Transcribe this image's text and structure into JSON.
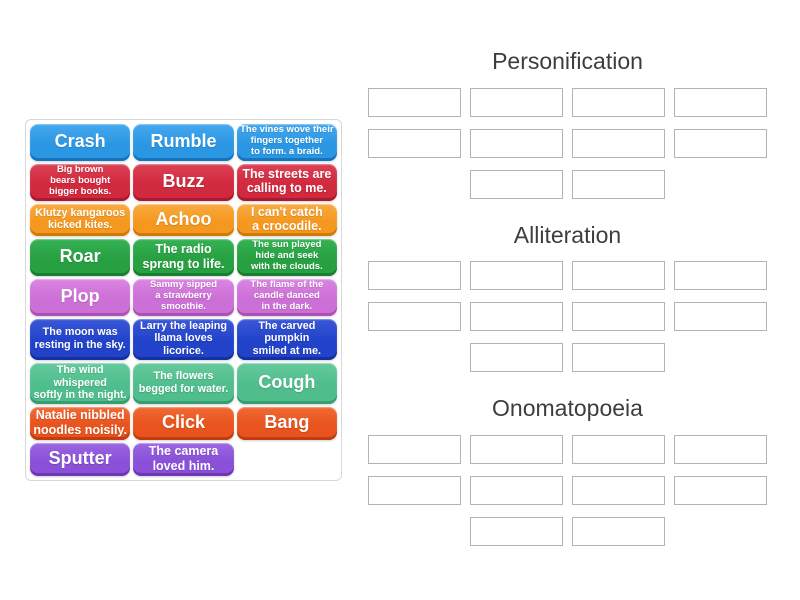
{
  "page": {
    "background": "#ffffff",
    "header_text_color": "#3d3d3d"
  },
  "palette": {
    "blue": {
      "base": "#2b97e3",
      "light": "#45a8ee",
      "dark": "#1576bf"
    },
    "crimson": {
      "base": "#d1293e",
      "light": "#dc4156",
      "dark": "#a81a2c"
    },
    "orange": {
      "base": "#f5981f",
      "light": "#f8ab41",
      "dark": "#d07a08"
    },
    "green": {
      "base": "#27a042",
      "light": "#35b253",
      "dark": "#177f30"
    },
    "orchid": {
      "base": "#cc6fd6",
      "light": "#d985e2",
      "dark": "#ad50b8"
    },
    "royalblue": {
      "base": "#2142c9",
      "light": "#3a58d8",
      "dark": "#1531a0"
    },
    "seagreen": {
      "base": "#4fbd8c",
      "light": "#65ca9d",
      "dark": "#379e71"
    },
    "orangered": {
      "base": "#e8531e",
      "light": "#f16a35",
      "dark": "#bf3d0e"
    },
    "violet": {
      "base": "#8a50d8",
      "light": "#9b66e2",
      "dark": "#6d38b5"
    }
  },
  "slot_style": {
    "border_color": "#b3b3b3",
    "fill": "#ffffff"
  },
  "word_bank": {
    "tiles": [
      {
        "lines": [
          "Crash"
        ],
        "color": "blue",
        "size": "xl"
      },
      {
        "lines": [
          "Rumble"
        ],
        "color": "blue",
        "size": "xl"
      },
      {
        "lines": [
          "The vines wove their",
          "fingers together",
          "to form. a braid."
        ],
        "color": "blue",
        "size": "sm"
      },
      {
        "lines": [
          "Big brown",
          "bears bought",
          "bigger books."
        ],
        "color": "crimson",
        "size": "sm"
      },
      {
        "lines": [
          "Buzz"
        ],
        "color": "crimson",
        "size": "xl"
      },
      {
        "lines": [
          "The streets are",
          "calling to me."
        ],
        "color": "crimson",
        "size": "lg"
      },
      {
        "lines": [
          "Klutzy kangaroos",
          "kicked kites."
        ],
        "color": "orange",
        "size": "md"
      },
      {
        "lines": [
          "Achoo"
        ],
        "color": "orange",
        "size": "xl"
      },
      {
        "lines": [
          "I can't catch",
          "a crocodile."
        ],
        "color": "orange",
        "size": "lg"
      },
      {
        "lines": [
          "Roar"
        ],
        "color": "green",
        "size": "xl"
      },
      {
        "lines": [
          "The radio",
          "sprang to life."
        ],
        "color": "green",
        "size": "lg"
      },
      {
        "lines": [
          "The sun played",
          "hide and seek",
          "with the clouds."
        ],
        "color": "green",
        "size": "sm"
      },
      {
        "lines": [
          "Plop"
        ],
        "color": "orchid",
        "size": "xl"
      },
      {
        "lines": [
          "Sammy sipped",
          "a strawberry",
          "smoothie."
        ],
        "color": "orchid",
        "size": "sm"
      },
      {
        "lines": [
          "The flame of the",
          "candle danced",
          "in the dark."
        ],
        "color": "orchid",
        "size": "sm"
      },
      {
        "lines": [
          "The moon was",
          "resting in the sky."
        ],
        "color": "royalblue",
        "size": "md"
      },
      {
        "lines": [
          "Larry the leaping",
          "llama loves licorice."
        ],
        "color": "royalblue",
        "size": "md"
      },
      {
        "lines": [
          "The carved pumpkin",
          "smiled at me."
        ],
        "color": "royalblue",
        "size": "md"
      },
      {
        "lines": [
          "The wind whispered",
          "softly in the night."
        ],
        "color": "seagreen",
        "size": "md"
      },
      {
        "lines": [
          "The flowers",
          "begged for water."
        ],
        "color": "seagreen",
        "size": "md"
      },
      {
        "lines": [
          "Cough"
        ],
        "color": "seagreen",
        "size": "xl"
      },
      {
        "lines": [
          "Natalie nibbled",
          "noodles noisily."
        ],
        "color": "orangered",
        "size": "lg"
      },
      {
        "lines": [
          "Click"
        ],
        "color": "orangered",
        "size": "xl"
      },
      {
        "lines": [
          "Bang"
        ],
        "color": "orangered",
        "size": "xl"
      },
      {
        "lines": [
          "Sputter"
        ],
        "color": "violet",
        "size": "xl"
      },
      {
        "lines": [
          "The camera",
          "loved him."
        ],
        "color": "violet",
        "size": "lg"
      }
    ]
  },
  "groups": [
    {
      "id": "personification",
      "label": "Personification",
      "slot_rows": [
        4,
        4,
        2
      ]
    },
    {
      "id": "alliteration",
      "label": "Alliteration",
      "slot_rows": [
        4,
        4,
        2
      ]
    },
    {
      "id": "onomatopoeia",
      "label": "Onomatopoeia",
      "slot_rows": [
        4,
        4,
        2
      ]
    }
  ]
}
